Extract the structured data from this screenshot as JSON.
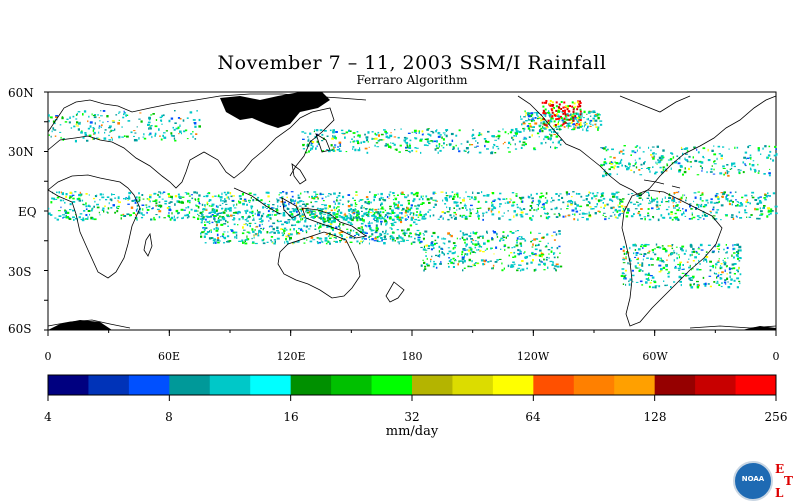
{
  "title": "November 7 – 11, 2003 SSM/I Rainfall",
  "subtitle": "Ferraro Algorithm",
  "lat_labels": [
    "60N",
    "30N",
    "EQ",
    "30S",
    "60S"
  ],
  "lon_labels": [
    "0",
    "60E",
    "120E",
    "180",
    "120W",
    "60W",
    "0"
  ],
  "colorbar": {
    "colors": [
      "#000080",
      "#0033b8",
      "#0050ff",
      "#009999",
      "#00c8c8",
      "#00ffff",
      "#009000",
      "#00c000",
      "#00ff00",
      "#b4b400",
      "#dcdc00",
      "#ffff00",
      "#ff5000",
      "#ff8000",
      "#ffa000",
      "#960000",
      "#c80000",
      "#ff0000"
    ],
    "tick_labels": [
      "4",
      "8",
      "16",
      "32",
      "64",
      "128",
      "256"
    ],
    "units": "mm/day"
  },
  "logo": {
    "noaa": "NOAA",
    "etl_letters": [
      "E",
      "T",
      "L"
    ]
  }
}
